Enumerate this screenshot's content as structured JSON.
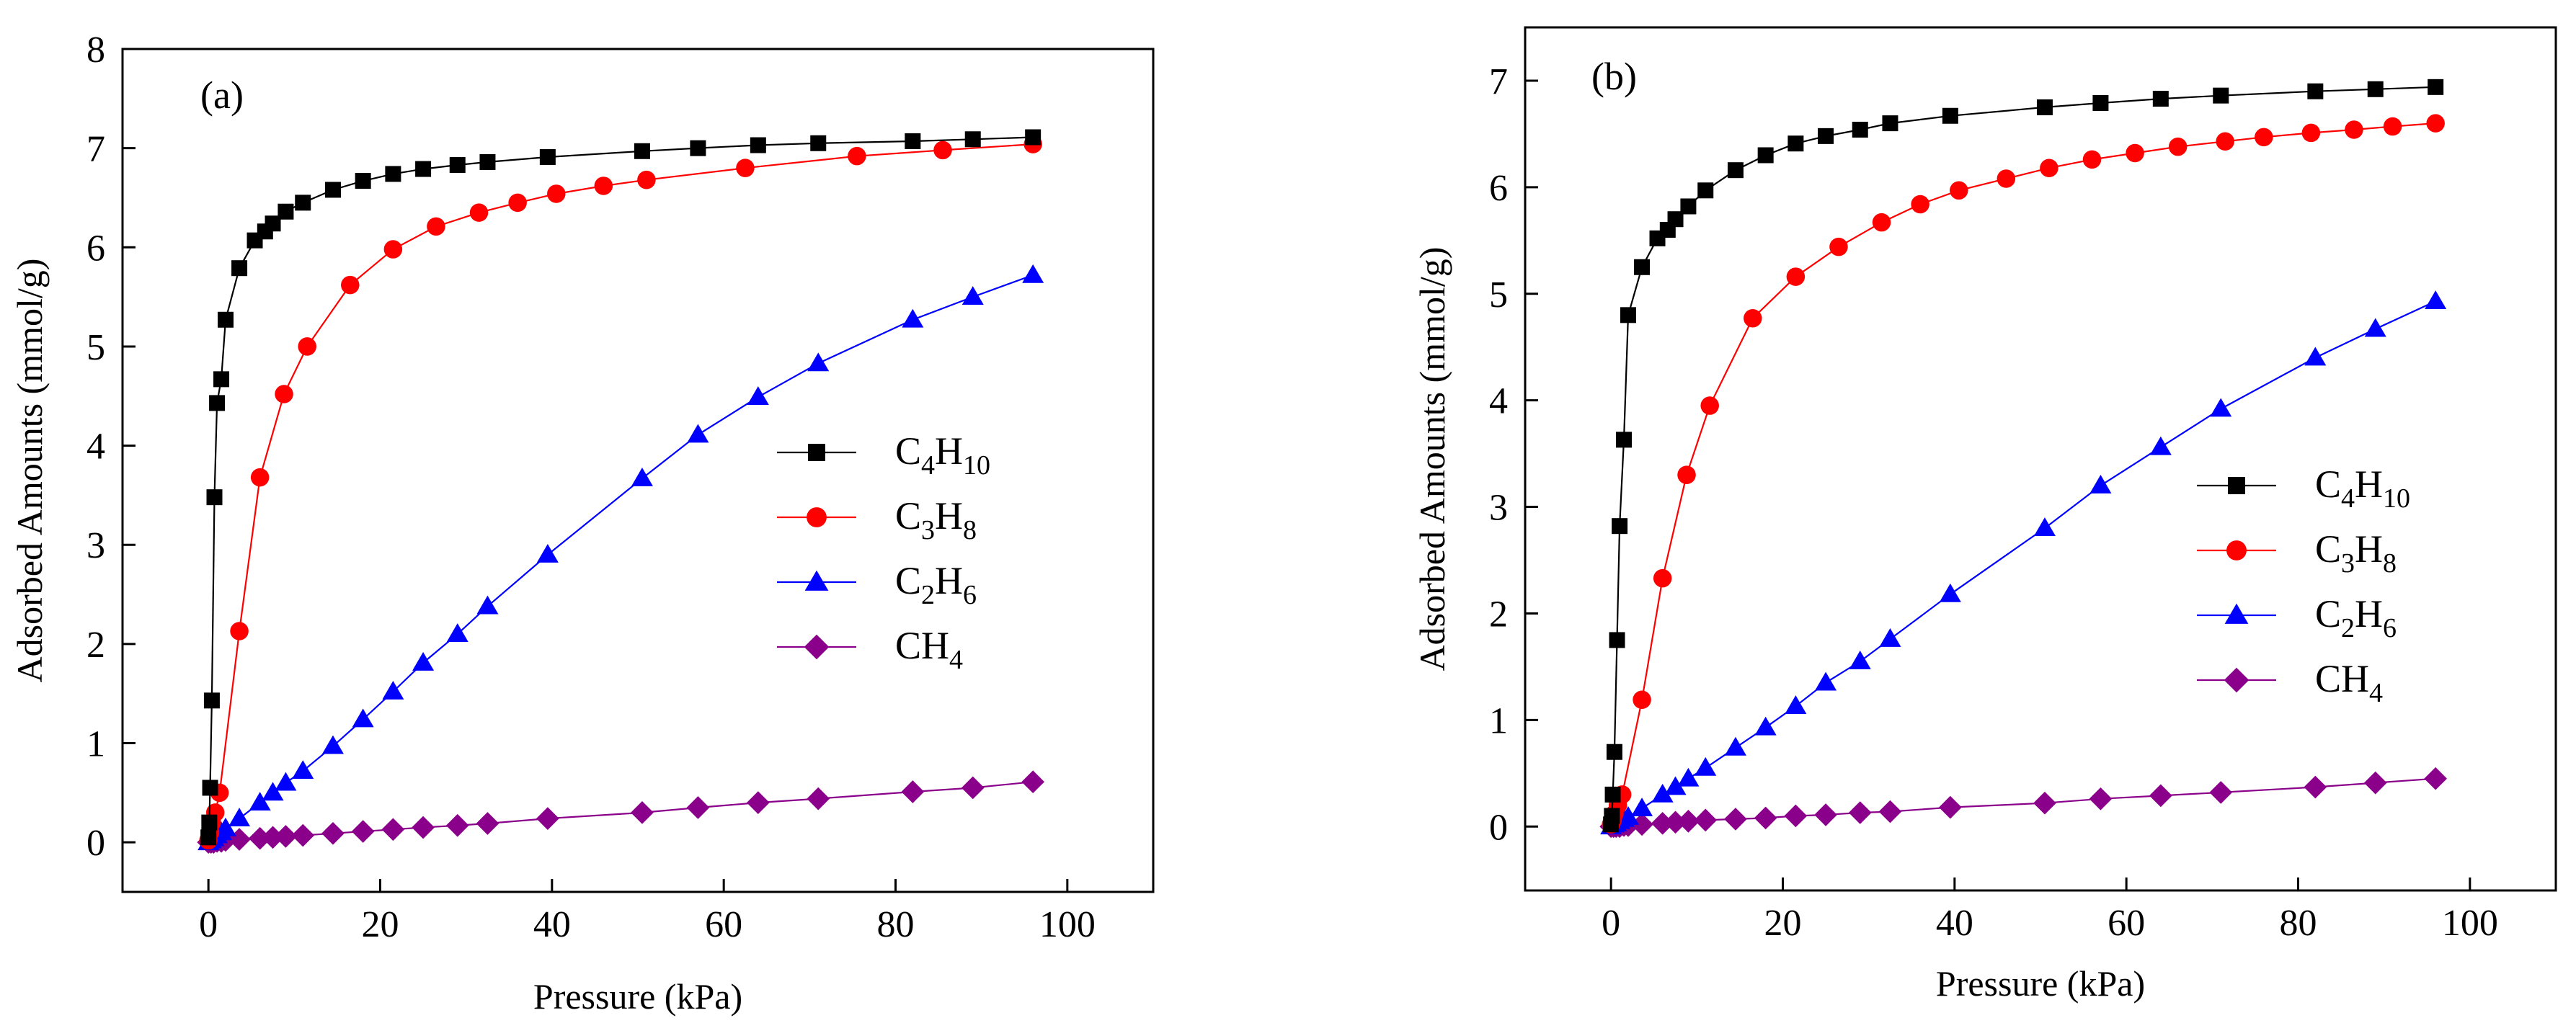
{
  "chart_data": [
    {
      "type": "line",
      "panel_label": "(a)",
      "xlabel": "Pressure (kPa)",
      "ylabel": "Adsorbed Amounts (mmol/g)",
      "xlim": [
        -10,
        110
      ],
      "ylim": [
        -0.5,
        8
      ],
      "xticks": [
        0,
        20,
        40,
        60,
        80,
        100
      ],
      "yticks": [
        0,
        1,
        2,
        3,
        4,
        5,
        6,
        7,
        8
      ],
      "legend_position": "center-right",
      "series": [
        {
          "name": "C4H10",
          "label_parts": [
            [
              "C",
              "n"
            ],
            [
              "4",
              "sub"
            ],
            [
              "H",
              "n"
            ],
            [
              "10",
              "sub"
            ]
          ],
          "color": "#000000",
          "marker": "square",
          "x": [
            0,
            0.1,
            0.2,
            0.4,
            0.7,
            1.0,
            1.5,
            2.0,
            3.6,
            5.4,
            6.6,
            7.5,
            9.0,
            11.0,
            14.5,
            18.0,
            21.5,
            25.0,
            29.0,
            32.5,
            39.5,
            50.5,
            57.0,
            64.0,
            71.0,
            82.0,
            89.0,
            96.0
          ],
          "y": [
            0.05,
            0.2,
            0.55,
            1.43,
            3.48,
            4.43,
            4.67,
            5.27,
            5.79,
            6.07,
            6.16,
            6.24,
            6.36,
            6.45,
            6.58,
            6.67,
            6.74,
            6.79,
            6.83,
            6.86,
            6.91,
            6.97,
            7.0,
            7.03,
            7.05,
            7.07,
            7.09,
            7.11
          ]
        },
        {
          "name": "C3H8",
          "label_parts": [
            [
              "C",
              "n"
            ],
            [
              "3",
              "sub"
            ],
            [
              "H",
              "n"
            ],
            [
              "8",
              "sub"
            ]
          ],
          "color": "#ff0000",
          "marker": "circle",
          "x": [
            0,
            0.2,
            0.4,
            0.8,
            1.3,
            3.6,
            6.0,
            8.8,
            11.5,
            16.5,
            21.5,
            26.5,
            31.5,
            36.0,
            40.5,
            46.0,
            51.0,
            62.5,
            75.5,
            85.5,
            96.0
          ],
          "y": [
            0.02,
            0.1,
            0.2,
            0.3,
            0.5,
            2.13,
            3.68,
            4.52,
            5.0,
            5.62,
            5.98,
            6.21,
            6.35,
            6.45,
            6.54,
            6.62,
            6.68,
            6.8,
            6.92,
            6.98,
            7.04
          ]
        },
        {
          "name": "C2H6",
          "label_parts": [
            [
              "C",
              "n"
            ],
            [
              "2",
              "sub"
            ],
            [
              "H",
              "n"
            ],
            [
              "6",
              "sub"
            ]
          ],
          "color": "#0000ff",
          "marker": "triangle",
          "x": [
            0,
            0.3,
            0.6,
            1.0,
            1.5,
            2.0,
            3.6,
            6.0,
            7.5,
            9.0,
            11.0,
            14.5,
            18.0,
            21.5,
            25.0,
            29.0,
            32.5,
            39.5,
            50.5,
            57.0,
            64.0,
            71.0,
            82.0,
            89.0,
            96.0
          ],
          "y": [
            0.0,
            0.02,
            0.04,
            0.07,
            0.1,
            0.14,
            0.24,
            0.4,
            0.5,
            0.6,
            0.72,
            0.97,
            1.24,
            1.52,
            1.81,
            2.1,
            2.38,
            2.9,
            3.67,
            4.11,
            4.49,
            4.83,
            5.27,
            5.5,
            5.72
          ]
        },
        {
          "name": "CH4",
          "label_parts": [
            [
              "CH",
              "n"
            ],
            [
              "4",
              "sub"
            ]
          ],
          "color": "#8b008b",
          "marker": "diamond",
          "x": [
            0,
            0.3,
            0.6,
            1.0,
            1.5,
            2.0,
            3.6,
            6.0,
            7.5,
            9.0,
            11.0,
            14.5,
            18.0,
            21.5,
            25.0,
            29.0,
            32.5,
            39.5,
            50.5,
            57.0,
            64.0,
            71.0,
            82.0,
            89.0,
            96.0
          ],
          "y": [
            0.0,
            0.0,
            0.0,
            0.01,
            0.01,
            0.02,
            0.03,
            0.04,
            0.05,
            0.06,
            0.07,
            0.09,
            0.11,
            0.13,
            0.15,
            0.17,
            0.19,
            0.24,
            0.3,
            0.35,
            0.4,
            0.44,
            0.51,
            0.55,
            0.61
          ]
        }
      ]
    },
    {
      "type": "line",
      "panel_label": "(b)",
      "xlabel": "Pressure (kPa)",
      "ylabel": "Adsorbed Amounts (mmol/g)",
      "xlim": [
        -10,
        110
      ],
      "ylim": [
        -0.6,
        7.5
      ],
      "xticks": [
        0,
        20,
        40,
        60,
        80,
        100
      ],
      "yticks": [
        0,
        1,
        2,
        3,
        4,
        5,
        6,
        7
      ],
      "legend_position": "center-right",
      "series": [
        {
          "name": "C4H10",
          "label_parts": [
            [
              "C",
              "n"
            ],
            [
              "4",
              "sub"
            ],
            [
              "H",
              "n"
            ],
            [
              "10",
              "sub"
            ]
          ],
          "color": "#000000",
          "marker": "square",
          "x": [
            0,
            0.1,
            0.2,
            0.4,
            0.7,
            1.0,
            1.5,
            2.0,
            3.6,
            5.4,
            6.6,
            7.5,
            9.0,
            11.0,
            14.5,
            18.0,
            21.5,
            25.0,
            29.0,
            32.5,
            39.5,
            50.5,
            57.0,
            64.0,
            71.0,
            82.0,
            89.0,
            96.0
          ],
          "y": [
            0.02,
            0.1,
            0.3,
            0.7,
            1.75,
            2.82,
            3.63,
            4.8,
            5.25,
            5.52,
            5.6,
            5.7,
            5.82,
            5.97,
            6.16,
            6.3,
            6.41,
            6.48,
            6.54,
            6.6,
            6.67,
            6.75,
            6.79,
            6.83,
            6.86,
            6.9,
            6.92,
            6.94
          ]
        },
        {
          "name": "C3H8",
          "label_parts": [
            [
              "C",
              "n"
            ],
            [
              "3",
              "sub"
            ],
            [
              "H",
              "n"
            ],
            [
              "8",
              "sub"
            ]
          ],
          "color": "#ff0000",
          "marker": "circle",
          "x": [
            0,
            0.2,
            0.4,
            0.8,
            1.3,
            3.6,
            6.0,
            8.8,
            11.5,
            16.5,
            21.5,
            26.5,
            31.5,
            36.0,
            40.5,
            46.0,
            51.0,
            56.0,
            61.0,
            66.0,
            71.5,
            76.0,
            81.5,
            86.5,
            91.0,
            96.0
          ],
          "y": [
            0.02,
            0.06,
            0.12,
            0.2,
            0.3,
            1.19,
            2.33,
            3.3,
            3.95,
            4.77,
            5.16,
            5.44,
            5.67,
            5.84,
            5.97,
            6.08,
            6.18,
            6.26,
            6.32,
            6.38,
            6.43,
            6.47,
            6.51,
            6.54,
            6.57,
            6.6
          ]
        },
        {
          "name": "C2H6",
          "label_parts": [
            [
              "C",
              "n"
            ],
            [
              "2",
              "sub"
            ],
            [
              "H",
              "n"
            ],
            [
              "6",
              "sub"
            ]
          ],
          "color": "#0000ff",
          "marker": "triangle",
          "x": [
            0,
            0.3,
            0.6,
            1.0,
            1.5,
            2.0,
            3.6,
            6.0,
            7.5,
            9.0,
            11.0,
            14.5,
            18.0,
            21.5,
            25.0,
            29.0,
            32.5,
            39.5,
            50.5,
            57.0,
            64.0,
            71.0,
            82.0,
            89.0,
            96.0
          ],
          "y": [
            0.0,
            0.02,
            0.03,
            0.05,
            0.07,
            0.09,
            0.17,
            0.3,
            0.37,
            0.45,
            0.55,
            0.74,
            0.93,
            1.13,
            1.35,
            1.55,
            1.76,
            2.18,
            2.8,
            3.2,
            3.56,
            3.92,
            4.4,
            4.67,
            4.93
          ]
        },
        {
          "name": "CH4",
          "label_parts": [
            [
              "CH",
              "n"
            ],
            [
              "4",
              "sub"
            ]
          ],
          "color": "#8b008b",
          "marker": "diamond",
          "x": [
            0,
            0.3,
            0.6,
            1.0,
            1.5,
            2.0,
            3.6,
            6.0,
            7.5,
            9.0,
            11.0,
            14.5,
            18.0,
            21.5,
            25.0,
            29.0,
            32.5,
            39.5,
            50.5,
            57.0,
            64.0,
            71.0,
            82.0,
            89.0,
            96.0
          ],
          "y": [
            0.0,
            0.0,
            0.0,
            0.0,
            0.01,
            0.01,
            0.02,
            0.03,
            0.04,
            0.05,
            0.06,
            0.07,
            0.08,
            0.1,
            0.11,
            0.13,
            0.14,
            0.18,
            0.22,
            0.26,
            0.29,
            0.32,
            0.37,
            0.41,
            0.45
          ]
        }
      ]
    }
  ]
}
